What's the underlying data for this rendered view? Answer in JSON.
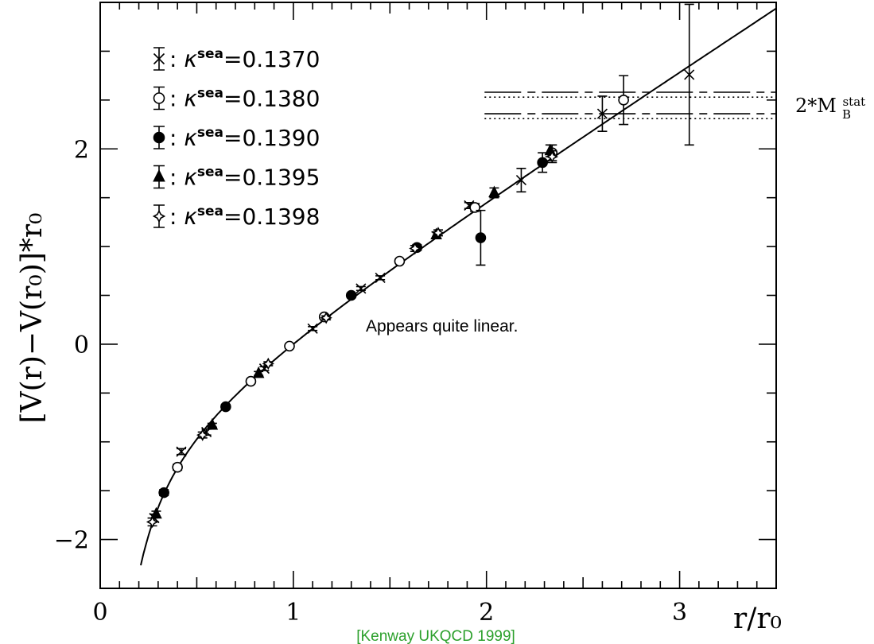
{
  "chart_data": {
    "type": "scatter",
    "xlabel": "r/r₀",
    "ylabel": "[V(r)−V(r₀)]*r₀",
    "xlim": [
      0,
      3.5
    ],
    "ylim": [
      -2.5,
      3.5
    ],
    "x_ticks": [
      0,
      1,
      2,
      3
    ],
    "y_ticks": [
      -2,
      0,
      2
    ],
    "grid": false,
    "legend_position": "top-left",
    "annotation": "Appears quite linear.",
    "credit": "[Kenway UKQCD 1999]",
    "credit_color": "#2ca02c",
    "threshold_label": "2*M",
    "threshold_label_sub": "B",
    "threshold_label_sup": "stat",
    "threshold_lines": [
      {
        "style": "long-dash",
        "y": 2.58,
        "x_start": 1.99
      },
      {
        "style": "dotted",
        "y": 2.53,
        "x_start": 1.99
      },
      {
        "style": "long-dash",
        "y": 2.36,
        "x_start": 1.99
      },
      {
        "style": "dotted",
        "y": 2.31,
        "x_start": 1.99
      }
    ],
    "fit_curve": {
      "form": "a + sigma*x - e/x",
      "sigma": 1.28,
      "e": 0.333,
      "x_start": 0.21,
      "x_end": 3.5,
      "a": -0.947
    },
    "series": [
      {
        "name": "κ^sea=0.1370",
        "kappa": "0.1370",
        "marker": "x",
        "points": [
          [
            0.28,
            -1.78,
            0.04
          ],
          [
            0.42,
            -1.1,
            0.03
          ],
          [
            0.55,
            -0.9,
            0.03
          ],
          [
            0.85,
            -0.25,
            0.02
          ],
          [
            1.1,
            0.16,
            0.02
          ],
          [
            1.35,
            0.57,
            0.02
          ],
          [
            1.45,
            0.68,
            0.02
          ],
          [
            1.91,
            1.42,
            0.03
          ],
          [
            2.18,
            1.68,
            0.12
          ],
          [
            2.6,
            2.36,
            0.18
          ],
          [
            3.05,
            2.76,
            0.72
          ]
        ]
      },
      {
        "name": "κ^sea=0.1380",
        "kappa": "0.1380",
        "marker": "circle-open",
        "points": [
          [
            0.4,
            -1.26,
            0.03
          ],
          [
            0.78,
            -0.38,
            0.02
          ],
          [
            0.98,
            -0.02,
            0.02
          ],
          [
            1.16,
            0.28,
            0.02
          ],
          [
            1.55,
            0.85,
            0.02
          ],
          [
            1.94,
            1.4,
            0.04
          ],
          [
            2.34,
            1.96,
            0.08
          ],
          [
            2.71,
            2.5,
            0.25
          ]
        ]
      },
      {
        "name": "κ^sea=0.1390",
        "kappa": "0.1390",
        "marker": "circle-filled",
        "points": [
          [
            0.33,
            -1.52,
            0.03
          ],
          [
            0.65,
            -0.64,
            0.02
          ],
          [
            1.3,
            0.5,
            0.02
          ],
          [
            1.64,
            0.99,
            0.03
          ],
          [
            1.97,
            1.09,
            0.28
          ],
          [
            2.29,
            1.86,
            0.1
          ]
        ]
      },
      {
        "name": "κ^sea=0.1395",
        "kappa": "0.1395",
        "marker": "triangle-filled",
        "points": [
          [
            0.29,
            -1.74,
            0.03
          ],
          [
            0.58,
            -0.83,
            0.02
          ],
          [
            0.82,
            -0.3,
            0.02
          ],
          [
            1.74,
            1.12,
            0.03
          ],
          [
            2.04,
            1.55,
            0.05
          ],
          [
            2.33,
            1.98,
            0.06
          ]
        ]
      },
      {
        "name": "κ^sea=0.1398",
        "kappa": "0.1398",
        "marker": "star-open",
        "points": [
          [
            0.27,
            -1.82,
            0.04
          ],
          [
            0.53,
            -0.93,
            0.03
          ],
          [
            0.87,
            -0.2,
            0.02
          ],
          [
            1.17,
            0.27,
            0.02
          ],
          [
            1.63,
            0.98,
            0.03
          ],
          [
            1.75,
            1.14,
            0.03
          ],
          [
            2.34,
            1.92,
            0.06
          ]
        ]
      }
    ]
  }
}
